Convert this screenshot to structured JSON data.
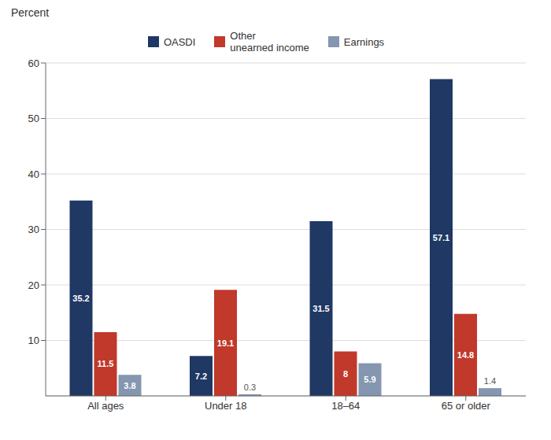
{
  "chart_data": {
    "type": "bar",
    "y_label": "Percent",
    "categories": [
      "All ages",
      "Under 18",
      "18–64",
      "65 or older"
    ],
    "series": [
      {
        "name": "OASDI",
        "color": "#1f3864",
        "values": [
          35.2,
          7.2,
          31.5,
          57.1
        ]
      },
      {
        "name": "Other\nunearned income",
        "color": "#c0392b",
        "values": [
          11.5,
          19.1,
          8.0,
          14.8
        ]
      },
      {
        "name": "Earnings",
        "color": "#8496b0",
        "values": [
          3.8,
          0.3,
          5.9,
          1.4
        ]
      }
    ],
    "ylim": [
      0,
      60
    ],
    "yticks": [
      10,
      20,
      30,
      40,
      50,
      60
    ],
    "grid": true,
    "legend": "top",
    "data_labels": true
  }
}
